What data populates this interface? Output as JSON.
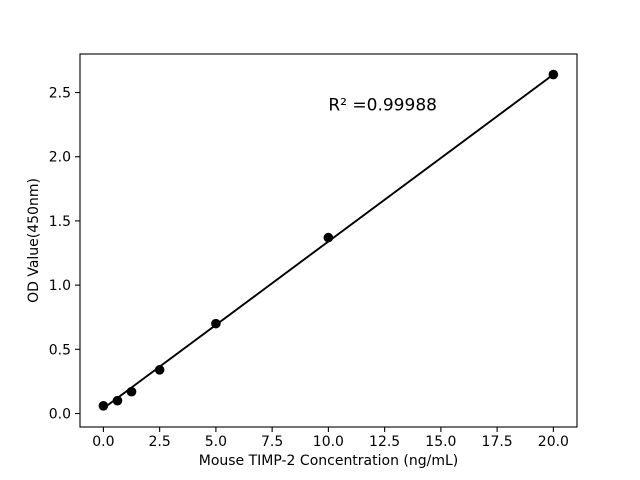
{
  "figure": {
    "background_color": "#ffffff",
    "foreground_color": "#000000"
  },
  "chart_data": {
    "type": "scatter",
    "title": "",
    "xlabel": "Mouse TIMP-2 Concentration (ng/mL)",
    "ylabel": "OD Value(450nm)",
    "annotation": {
      "text": "R² =0.99988",
      "x": 10,
      "y": 2.36
    },
    "series": [
      {
        "name": "standard-curve-points",
        "marker": "circle",
        "color": "#000000",
        "x": [
          0,
          0.625,
          1.25,
          2.5,
          5,
          10,
          20
        ],
        "y": [
          0.06,
          0.1,
          0.17,
          0.34,
          0.7,
          1.37,
          2.64
        ]
      }
    ],
    "fit_line": {
      "name": "linear-fit-line",
      "color": "#000000",
      "x": [
        0,
        20
      ],
      "y": [
        0.04,
        2.64
      ]
    },
    "xticks": {
      "values": [
        0,
        2.5,
        5,
        7.5,
        10,
        12.5,
        15,
        17.5,
        20
      ],
      "labels": [
        "0.0",
        "2.5",
        "5.0",
        "7.5",
        "10.0",
        "12.5",
        "15.0",
        "17.5",
        "20.0"
      ]
    },
    "yticks": {
      "values": [
        0,
        0.5,
        1.0,
        1.5,
        2.0,
        2.5
      ],
      "labels": [
        "0.0",
        "0.5",
        "1.0",
        "1.5",
        "2.0",
        "2.5"
      ]
    },
    "xlim": [
      -1.04,
      21.05
    ],
    "ylim": [
      -0.105,
      2.8
    ],
    "grid": false,
    "legend": false
  }
}
